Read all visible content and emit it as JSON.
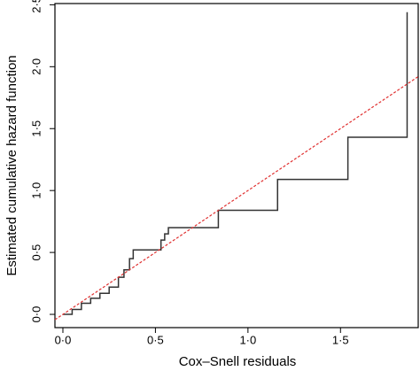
{
  "chart_data": {
    "type": "step",
    "xlabel": "Cox–Snell residuals",
    "ylabel": "Estimated cumulative hazard function",
    "xlim": [
      -0.043,
      1.92
    ],
    "ylim": [
      -0.107,
      2.51
    ],
    "xticks": [
      {
        "value": 0,
        "label": "0·0"
      },
      {
        "value": 0.5,
        "label": "0·5"
      },
      {
        "value": 1,
        "label": "1·0"
      },
      {
        "value": 1.5,
        "label": "1·5"
      }
    ],
    "yticks": [
      {
        "value": 0,
        "label": "0·0"
      },
      {
        "value": 0.5,
        "label": "0·5"
      },
      {
        "value": 1,
        "label": "1·0"
      },
      {
        "value": 1.5,
        "label": "1·5"
      },
      {
        "value": 2,
        "label": "2·0"
      },
      {
        "value": 2.5,
        "label": "2·5"
      }
    ],
    "series": [
      {
        "color": "#333333",
        "style": "step",
        "x": [
          0,
          0.05,
          0.1,
          0.15,
          0.2,
          0.25,
          0.3,
          0.33,
          0.36,
          0.38,
          0.53,
          0.55,
          0.57,
          0.84,
          1.16,
          1.54,
          1.86
        ],
        "values": [
          0,
          0.04,
          0.09,
          0.13,
          0.17,
          0.22,
          0.3,
          0.36,
          0.45,
          0.52,
          0.6,
          0.65,
          0.7,
          0.84,
          1.09,
          1.43,
          2.44
        ]
      },
      {
        "color": "#e03030",
        "style": "dashed",
        "x": [
          -0.043,
          1.92
        ],
        "values": [
          -0.043,
          1.92
        ]
      }
    ]
  }
}
